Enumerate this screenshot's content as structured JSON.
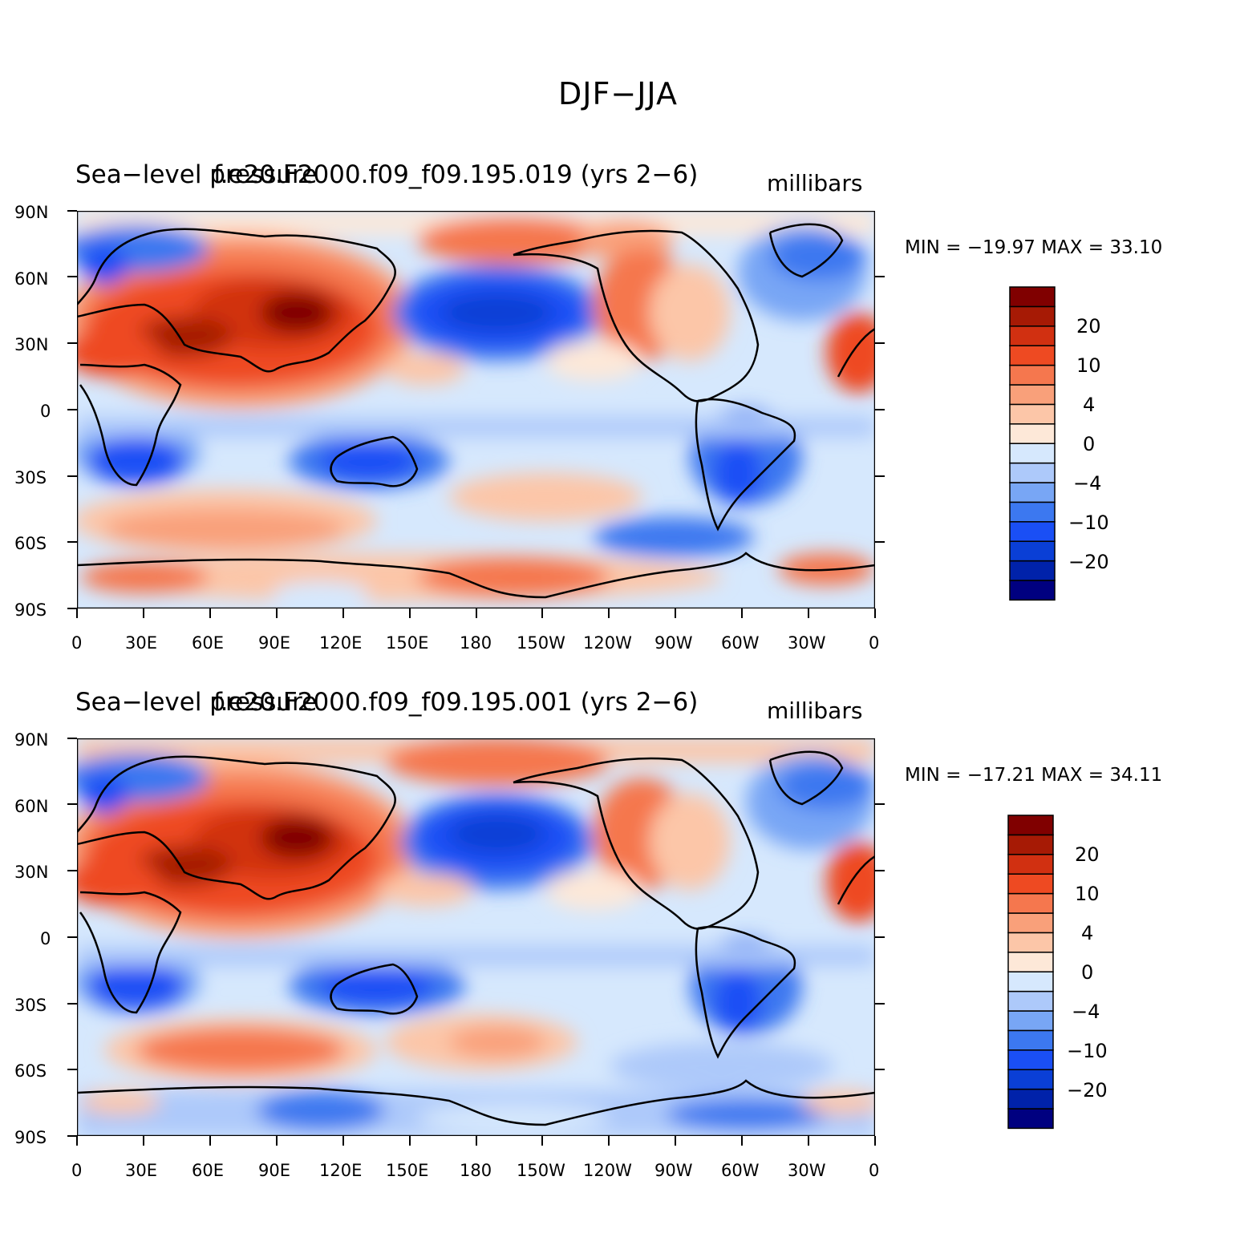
{
  "figure": {
    "title": "DJF−JJA",
    "lon_ticks": [
      "0",
      "30E",
      "60E",
      "90E",
      "120E",
      "150E",
      "180",
      "150W",
      "120W",
      "90W",
      "60W",
      "30W",
      "0"
    ],
    "lat_ticks": [
      "90N",
      "60N",
      "30N",
      "0",
      "30S",
      "60S",
      "90S"
    ],
    "colorbar_labels": [
      "20",
      "10",
      "4",
      "0",
      "−4",
      "−10",
      "−20"
    ],
    "colors": [
      "#000080",
      "#0022aa",
      "#0a3fd6",
      "#1a4ff5",
      "#3c78f0",
      "#78a6f5",
      "#adc9fa",
      "#d6e8fd",
      "#fde8d8",
      "#fcc6a8",
      "#f9a07a",
      "#f5774e",
      "#ee4a22",
      "#d13011",
      "#a61a05",
      "#800000"
    ]
  },
  "panels": [
    {
      "case": "f.e20.F2000.f09_f09.195.019 (yrs 2−6)",
      "variable": "Sea−level pressure",
      "units": "millibars",
      "min_max": "MIN = −19.97  MAX =   33.10"
    },
    {
      "case": "f.e20.F2000.f09_f09.195.001 (yrs 2−6)",
      "variable": "Sea−level pressure",
      "units": "millibars",
      "min_max": "MIN = −17.21  MAX =   34.11"
    }
  ]
}
